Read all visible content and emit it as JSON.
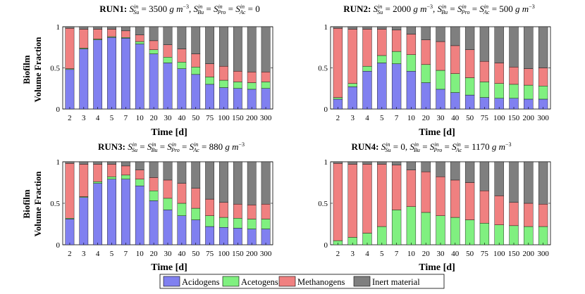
{
  "chart_data": [
    {
      "type": "bar",
      "stacked": true,
      "title": {
        "run": "RUN1:",
        "conditions": "S_Su^in = 3500 g m^-3, S_Bu^in = S_Pro^in = S_Ac^in = 0",
        "value1": "3500",
        "value2": "0",
        "unit": "g m",
        "exp": "−3"
      },
      "xlabel": "Time [d]",
      "ylabel": "Biofilm Volume Fraction",
      "ylim": [
        0,
        1
      ],
      "yticks": [
        "0",
        "0.5",
        "1"
      ],
      "categories": [
        "2",
        "3",
        "4",
        "5",
        "7",
        "10",
        "20",
        "30",
        "40",
        "50",
        "75",
        "100",
        "150",
        "200",
        "300"
      ],
      "series": [
        {
          "name": "Acidogens",
          "values": [
            0.48,
            0.73,
            0.84,
            0.87,
            0.86,
            0.79,
            0.67,
            0.56,
            0.49,
            0.42,
            0.3,
            0.26,
            0.25,
            0.24,
            0.25
          ]
        },
        {
          "name": "Acetogens",
          "values": [
            0.01,
            0.01,
            0.01,
            0.01,
            0.01,
            0.03,
            0.05,
            0.07,
            0.08,
            0.09,
            0.09,
            0.09,
            0.08,
            0.08,
            0.08
          ]
        },
        {
          "name": "Methanogens",
          "values": [
            0.49,
            0.23,
            0.12,
            0.09,
            0.08,
            0.08,
            0.11,
            0.15,
            0.16,
            0.16,
            0.16,
            0.17,
            0.13,
            0.13,
            0.12
          ]
        },
        {
          "name": "Inert material",
          "values": [
            0.02,
            0.03,
            0.03,
            0.03,
            0.05,
            0.1,
            0.17,
            0.22,
            0.27,
            0.33,
            0.45,
            0.48,
            0.54,
            0.55,
            0.55
          ]
        }
      ]
    },
    {
      "type": "bar",
      "stacked": true,
      "title": {
        "run": "RUN2:",
        "conditions": "S_Su^in = 2000 g m^-3, S_Bu^in = S_Pro^in = S_Ac^in = 500 g m^-3",
        "value1": "2000",
        "value2": "500",
        "unit": "g m",
        "exp": "−3"
      },
      "xlabel": "Time [d]",
      "ylabel": "Biofilm Volume Fraction",
      "ylim": [
        0,
        1
      ],
      "yticks": [
        "0",
        "0.5",
        "1"
      ],
      "categories": [
        "2",
        "3",
        "4",
        "5",
        "7",
        "10",
        "20",
        "30",
        "40",
        "50",
        "75",
        "100",
        "150",
        "200",
        "300"
      ],
      "series": [
        {
          "name": "Acidogens",
          "values": [
            0.12,
            0.27,
            0.46,
            0.56,
            0.55,
            0.46,
            0.32,
            0.24,
            0.2,
            0.17,
            0.14,
            0.13,
            0.13,
            0.12,
            0.12
          ]
        },
        {
          "name": "Acetogens",
          "values": [
            0.02,
            0.04,
            0.06,
            0.09,
            0.15,
            0.2,
            0.22,
            0.23,
            0.23,
            0.21,
            0.19,
            0.18,
            0.17,
            0.17,
            0.16
          ]
        },
        {
          "name": "Methanogens",
          "values": [
            0.84,
            0.66,
            0.45,
            0.32,
            0.26,
            0.25,
            0.3,
            0.35,
            0.34,
            0.34,
            0.25,
            0.25,
            0.21,
            0.2,
            0.22
          ]
        },
        {
          "name": "Inert material",
          "values": [
            0.02,
            0.03,
            0.03,
            0.03,
            0.04,
            0.09,
            0.16,
            0.18,
            0.23,
            0.28,
            0.42,
            0.44,
            0.49,
            0.51,
            0.5
          ]
        }
      ]
    },
    {
      "type": "bar",
      "stacked": true,
      "title": {
        "run": "RUN3:",
        "conditions": "S_Su^in = S_Bu^in = S_Pro^in = S_Ac^in = 880 g m^-3",
        "value1": "880",
        "unit": "g m",
        "exp": "−3"
      },
      "xlabel": "Time [d]",
      "ylabel": "Biofilm Volume Fraction",
      "ylim": [
        0,
        1
      ],
      "yticks": [
        "0",
        "0.5",
        "1"
      ],
      "categories": [
        "2",
        "3",
        "4",
        "5",
        "7",
        "10",
        "20",
        "30",
        "40",
        "50",
        "75",
        "100",
        "150",
        "200",
        "300"
      ],
      "series": [
        {
          "name": "Acidogens",
          "values": [
            0.31,
            0.57,
            0.74,
            0.79,
            0.79,
            0.71,
            0.53,
            0.42,
            0.35,
            0.3,
            0.22,
            0.21,
            0.2,
            0.19,
            0.19
          ]
        },
        {
          "name": "Acetogens",
          "values": [
            0.01,
            0.01,
            0.02,
            0.03,
            0.05,
            0.08,
            0.12,
            0.14,
            0.15,
            0.14,
            0.13,
            0.12,
            0.12,
            0.12,
            0.12
          ]
        },
        {
          "name": "Methanogens",
          "values": [
            0.66,
            0.39,
            0.21,
            0.15,
            0.11,
            0.11,
            0.16,
            0.22,
            0.24,
            0.24,
            0.2,
            0.18,
            0.17,
            0.17,
            0.18
          ]
        },
        {
          "name": "Inert material",
          "values": [
            0.02,
            0.03,
            0.03,
            0.03,
            0.05,
            0.1,
            0.19,
            0.22,
            0.26,
            0.32,
            0.45,
            0.49,
            0.51,
            0.52,
            0.51
          ]
        }
      ]
    },
    {
      "type": "bar",
      "stacked": true,
      "title": {
        "run": "RUN4:",
        "conditions": "S_Su^in = 0, S_Bu^in = S_Pro^in = S_Ac^in = 1170 g m^-3",
        "value1": "0",
        "value2": "1170",
        "unit": "g m",
        "exp": "−3"
      },
      "xlabel": "Time [d]",
      "ylabel": "Biofilm Volume Fraction",
      "ylim": [
        0,
        1
      ],
      "yticks": [
        "0",
        "0.5",
        "1"
      ],
      "categories": [
        "2",
        "3",
        "4",
        "5",
        "7",
        "10",
        "20",
        "30",
        "40",
        "50",
        "75",
        "100",
        "150",
        "200",
        "300"
      ],
      "series": [
        {
          "name": "Acidogens",
          "values": [
            0,
            0,
            0,
            0,
            0,
            0,
            0,
            0,
            0,
            0,
            0,
            0,
            0,
            0,
            0
          ]
        },
        {
          "name": "Acetogens",
          "values": [
            0.05,
            0.09,
            0.14,
            0.22,
            0.42,
            0.46,
            0.39,
            0.35,
            0.33,
            0.3,
            0.26,
            0.24,
            0.23,
            0.22,
            0.22
          ]
        },
        {
          "name": "Methanogens",
          "values": [
            0.93,
            0.88,
            0.83,
            0.75,
            0.54,
            0.44,
            0.49,
            0.47,
            0.45,
            0.45,
            0.39,
            0.35,
            0.28,
            0.28,
            0.27
          ]
        },
        {
          "name": "Inert material",
          "values": [
            0.02,
            0.03,
            0.03,
            0.03,
            0.04,
            0.1,
            0.12,
            0.18,
            0.22,
            0.25,
            0.35,
            0.41,
            0.49,
            0.5,
            0.51
          ]
        }
      ]
    }
  ],
  "legend": {
    "entries": [
      "Acidogens",
      "Acetogens",
      "Methanogens",
      "Inert material"
    ],
    "colors": [
      "#8080f0",
      "#80f080",
      "#f08080",
      "#7f7f7f"
    ]
  }
}
